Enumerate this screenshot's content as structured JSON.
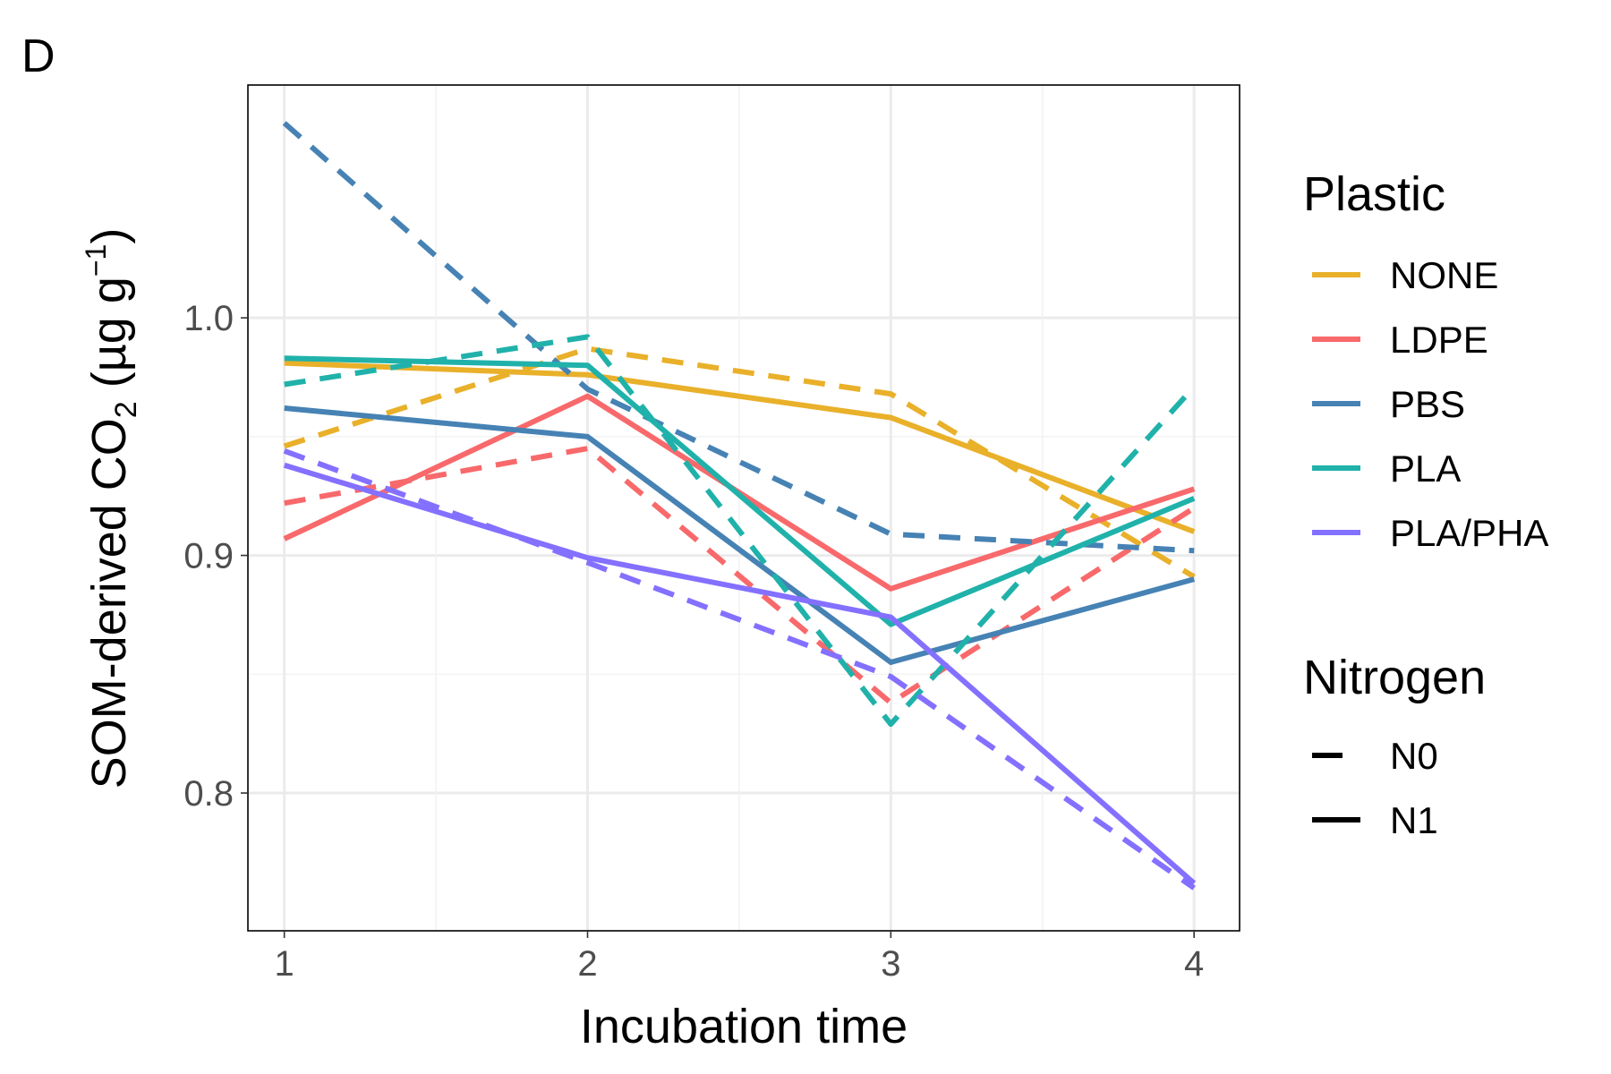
{
  "panel_label": "D",
  "chart_data": {
    "type": "line",
    "title": "",
    "xlabel": "Incubation time",
    "ylabel_main": "SOM-derived CO",
    "ylabel_sub": "2",
    "ylabel_unit_open": " (µg g",
    "ylabel_unit_sup": "−1",
    "ylabel_unit_close": ")",
    "x": [
      1,
      2,
      3,
      4
    ],
    "xlim": [
      0.88,
      4.15
    ],
    "ylim": [
      0.742,
      1.098
    ],
    "yticks": [
      0.8,
      0.9,
      1.0
    ],
    "ytick_labels": [
      "0.8",
      "0.9",
      "1.0"
    ],
    "xtick_labels": [
      "1",
      "2",
      "3",
      "4"
    ],
    "grid": true,
    "legend_position": "right",
    "legend": {
      "color_title": "Plastic",
      "linetype_title": "Nitrogen",
      "linetypes": [
        {
          "name": "N0",
          "style": "dashed"
        },
        {
          "name": "N1",
          "style": "solid"
        }
      ]
    },
    "plastics": [
      {
        "name": "NONE",
        "color": "#E9B02A"
      },
      {
        "name": "LDPE",
        "color": "#F8696B"
      },
      {
        "name": "PBS",
        "color": "#4682B4"
      },
      {
        "name": "PLA",
        "color": "#20B2AA"
      },
      {
        "name": "PLA/PHA",
        "color": "#8470FF"
      }
    ],
    "series": [
      {
        "plastic": "NONE",
        "nitrogen": "N0",
        "values": [
          0.946,
          0.987,
          0.968,
          0.891
        ]
      },
      {
        "plastic": "NONE",
        "nitrogen": "N1",
        "values": [
          0.981,
          0.976,
          0.958,
          0.91
        ]
      },
      {
        "plastic": "LDPE",
        "nitrogen": "N0",
        "values": [
          0.922,
          0.945,
          0.838,
          0.92
        ]
      },
      {
        "plastic": "LDPE",
        "nitrogen": "N1",
        "values": [
          0.907,
          0.967,
          0.886,
          0.928
        ]
      },
      {
        "plastic": "PBS",
        "nitrogen": "N0",
        "values": [
          1.082,
          0.97,
          0.909,
          0.902
        ]
      },
      {
        "plastic": "PBS",
        "nitrogen": "N1",
        "values": [
          0.962,
          0.95,
          0.855,
          0.89
        ]
      },
      {
        "plastic": "PLA",
        "nitrogen": "N0",
        "values": [
          0.972,
          0.992,
          0.829,
          0.971
        ]
      },
      {
        "plastic": "PLA",
        "nitrogen": "N1",
        "values": [
          0.983,
          0.98,
          0.871,
          0.924
        ]
      },
      {
        "plastic": "PLA/PHA",
        "nitrogen": "N0",
        "values": [
          0.944,
          0.897,
          0.849,
          0.76
        ]
      },
      {
        "plastic": "PLA/PHA",
        "nitrogen": "N1",
        "values": [
          0.938,
          0.899,
          0.874,
          0.762
        ]
      }
    ]
  }
}
